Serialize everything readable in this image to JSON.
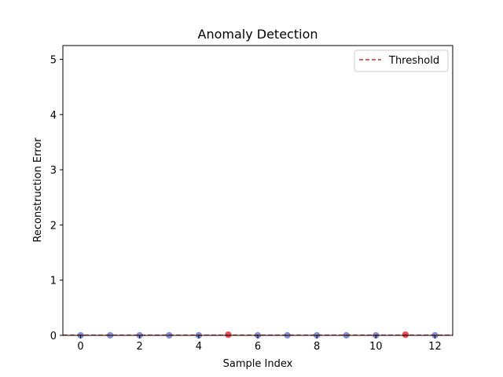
{
  "chart_data": {
    "type": "scatter",
    "title": "Anomaly Detection",
    "xlabel": "Sample Index",
    "ylabel": "Reconstruction Error",
    "xlim": [
      -0.6,
      12.6
    ],
    "ylim": [
      0,
      5.25
    ],
    "xticks": [
      0,
      2,
      4,
      6,
      8,
      10,
      12
    ],
    "yticks": [
      0,
      1,
      2,
      3,
      4,
      5
    ],
    "grid": false,
    "legend_position": "top-right",
    "threshold": {
      "name": "Threshold",
      "value": 0.005,
      "color": "#d62728",
      "style": "dashed"
    },
    "points": [
      {
        "x": 0,
        "y": 0.001,
        "anomaly": false
      },
      {
        "x": 1,
        "y": 0.001,
        "anomaly": false
      },
      {
        "x": 2,
        "y": 0.001,
        "anomaly": false
      },
      {
        "x": 3,
        "y": 0.001,
        "anomaly": false
      },
      {
        "x": 4,
        "y": 0.001,
        "anomaly": false
      },
      {
        "x": 5,
        "y": 0.012,
        "anomaly": true
      },
      {
        "x": 6,
        "y": 0.001,
        "anomaly": false
      },
      {
        "x": 7,
        "y": 0.001,
        "anomaly": false
      },
      {
        "x": 8,
        "y": 0.001,
        "anomaly": false
      },
      {
        "x": 9,
        "y": 0.001,
        "anomaly": false
      },
      {
        "x": 10,
        "y": 0.001,
        "anomaly": false
      },
      {
        "x": 11,
        "y": 0.012,
        "anomaly": true
      },
      {
        "x": 12,
        "y": 0.001,
        "anomaly": false
      }
    ],
    "colors": {
      "normal": "#6f7fd4",
      "anomaly": "#e0303a",
      "axis": "#000000"
    }
  }
}
